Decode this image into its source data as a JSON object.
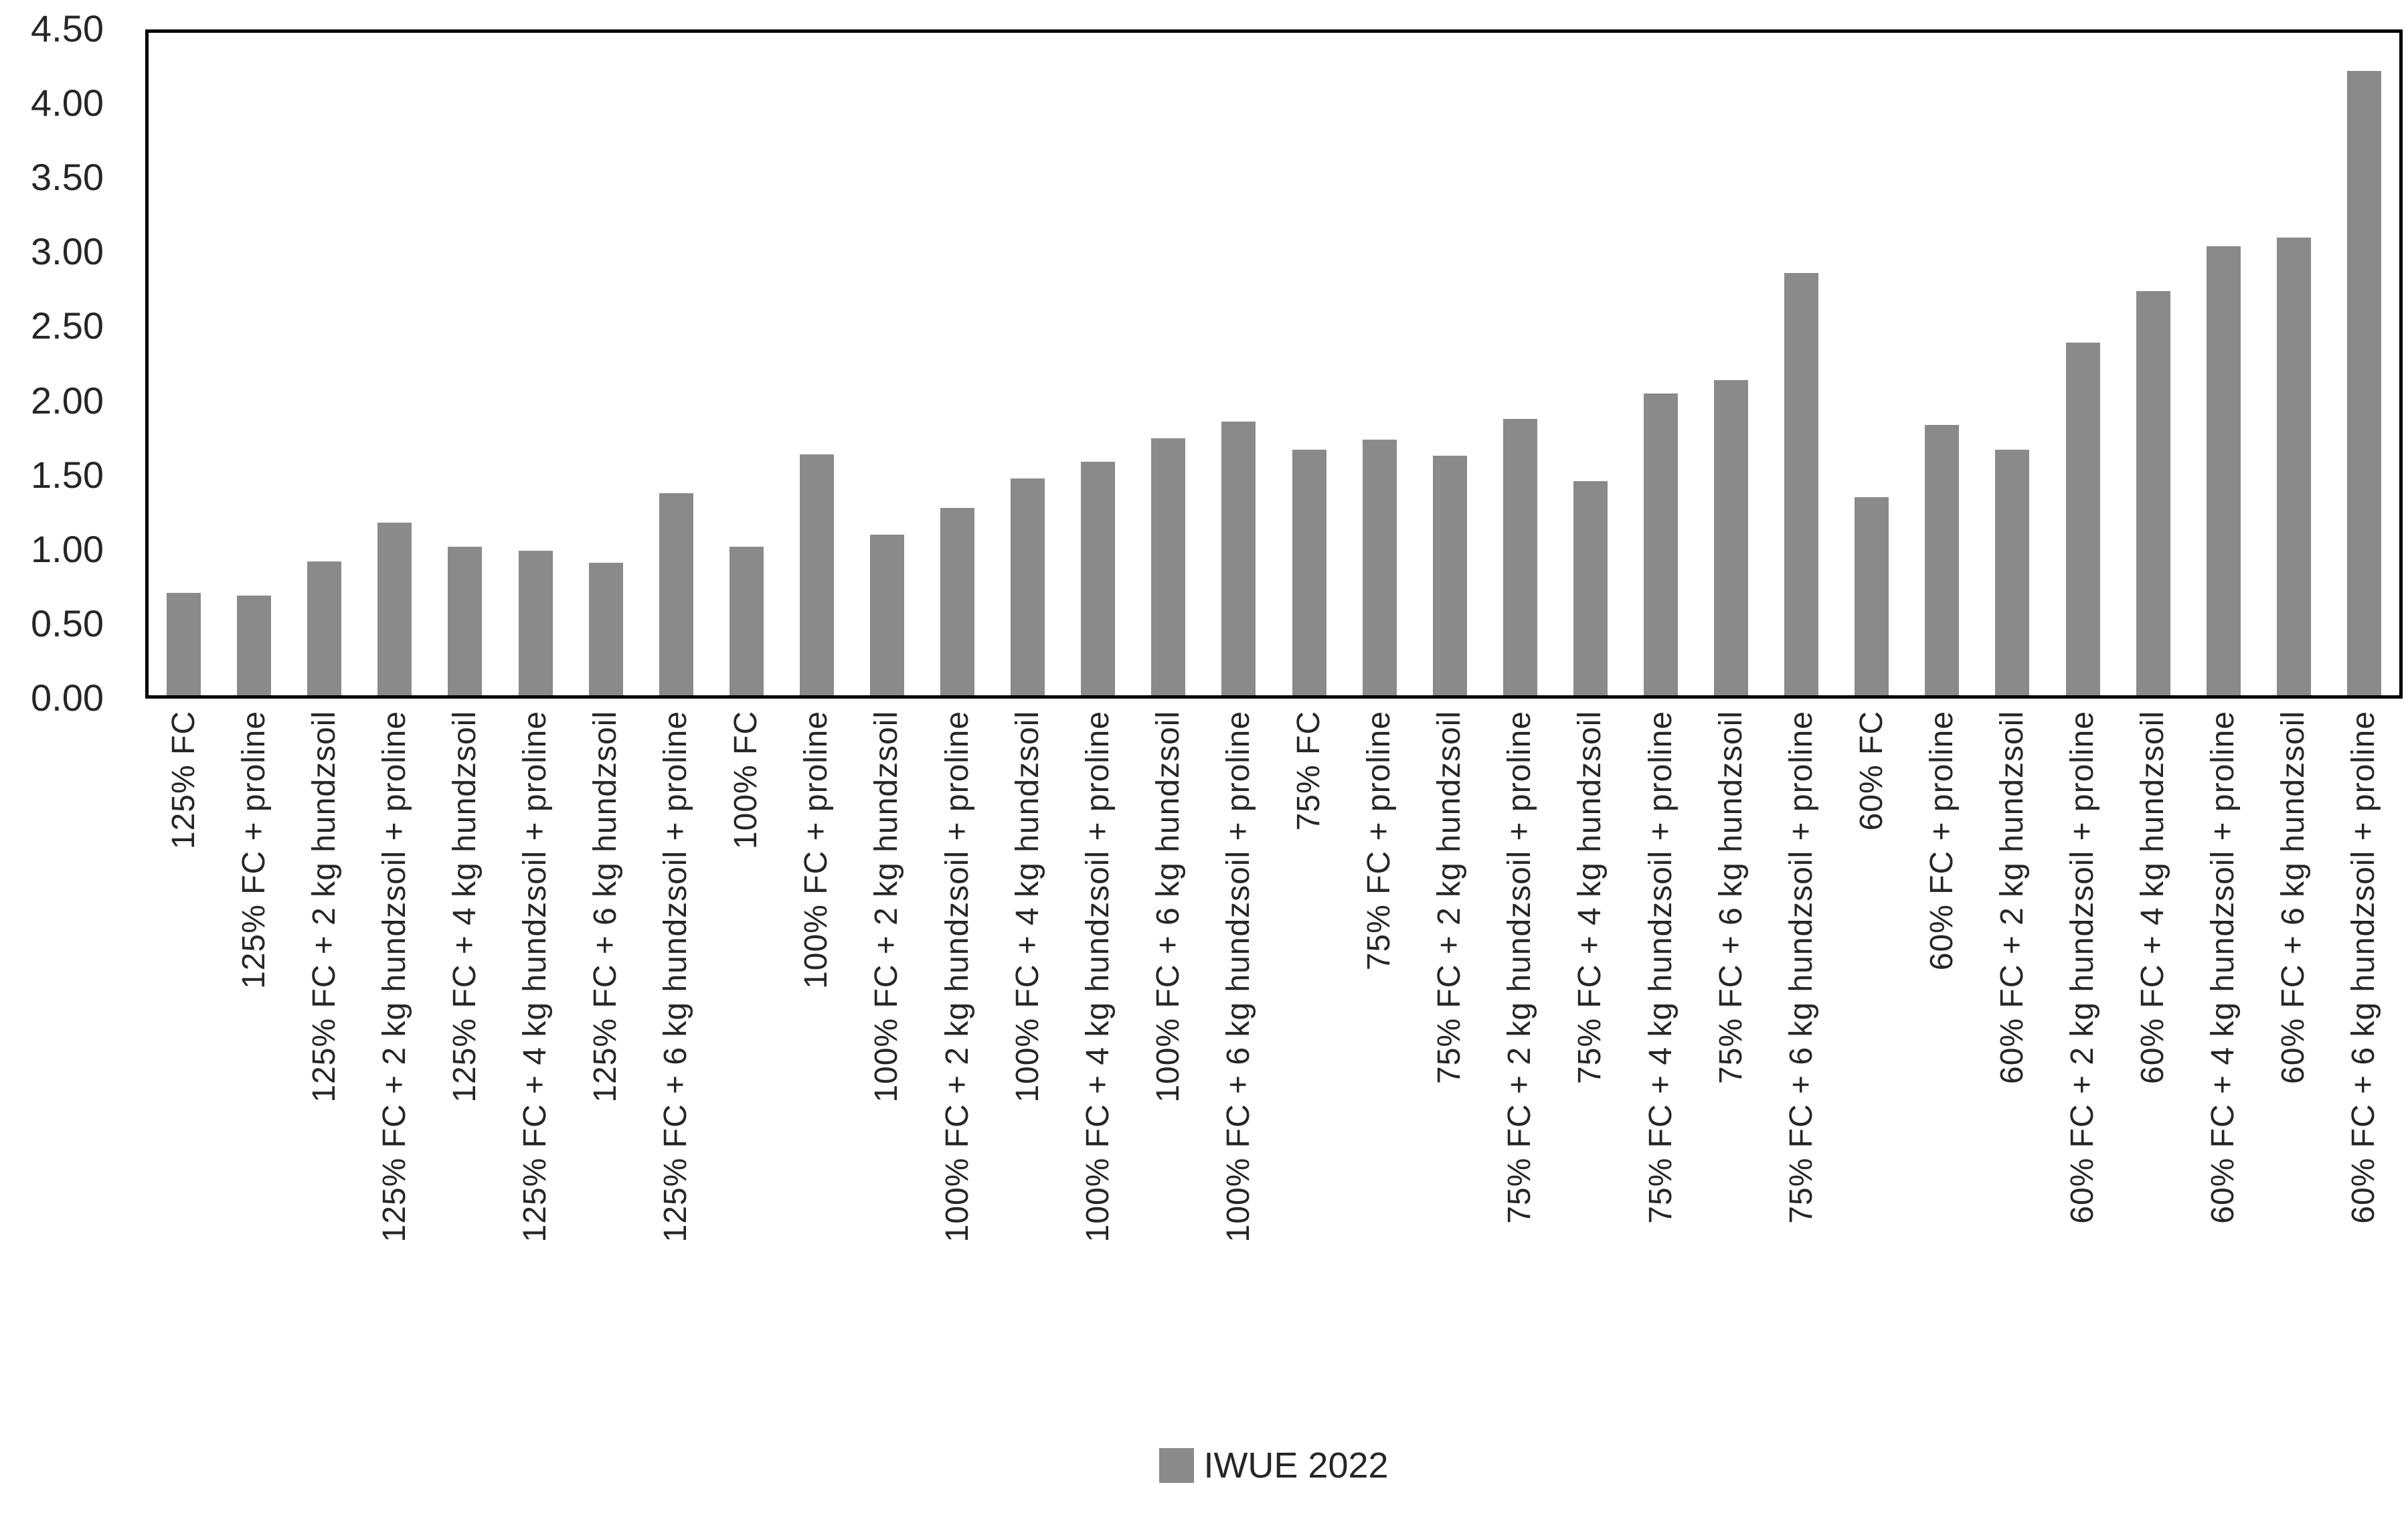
{
  "chart_data": {
    "type": "bar",
    "title": "",
    "xlabel": "",
    "ylabel": "",
    "categories": [
      "125% FC",
      "125% FC + proline",
      "125% FC + 2 kg hundzsoil",
      "125% FC + 2 kg hundzsoil + proline",
      "125% FC + 4 kg hundzsoil",
      "125% FC + 4 kg hundzsoil + proline",
      "125% FC + 6 kg hundzsoil",
      "125% FC + 6 kg hundzsoil + proline",
      "100% FC",
      "100% FC + proline",
      "100% FC + 2 kg hundzsoil",
      "100% FC + 2 kg hundzsoil + proline",
      "100% FC + 4 kg hundzsoil",
      "100% FC + 4 kg hundzsoil + proline",
      "100% FC + 6 kg hundzsoil",
      "100% FC + 6 kg hundzsoil + proline",
      "75% FC",
      "75% FC + proline",
      "75% FC + 2 kg hundzsoil",
      "75% FC + 2 kg hundzsoil + proline",
      "75% FC + 4 kg hundzsoil",
      "75% FC + 4 kg hundzsoil + proline",
      "75% FC + 6 kg hundzsoil",
      "75% FC + 6 kg hundzsoil + proline",
      "60% FC",
      "60% FC + proline",
      "60% FC + 2 kg hundzsoil",
      "60% FC + 2 kg hundzsoil + proline",
      "60% FC + 4 kg hundzsoil",
      "60% FC + 4 kg hundzsoil + proline",
      "60% FC + 6 kg hundzsoil",
      "60% FC + 6 kg hundzsoil + proline"
    ],
    "series": [
      {
        "name": "IWUE 2022",
        "values": [
          0.69,
          0.67,
          0.9,
          1.16,
          1.0,
          0.97,
          0.89,
          1.36,
          1.0,
          1.62,
          1.08,
          1.26,
          1.46,
          1.57,
          1.73,
          1.84,
          1.65,
          1.72,
          1.61,
          1.86,
          1.44,
          2.03,
          2.12,
          2.84,
          1.33,
          1.82,
          1.65,
          2.37,
          2.72,
          3.02,
          3.08,
          4.2
        ]
      }
    ],
    "ylim": [
      0,
      4.5
    ],
    "ytick_step": 0.5,
    "ytick_labels": [
      "0.00",
      "0.50",
      "1.00",
      "1.50",
      "2.00",
      "2.50",
      "3.00",
      "3.50",
      "4.00",
      "4.50"
    ],
    "grid": false,
    "legend_position": "bottom",
    "legend_entries": [
      "IWUE 2022"
    ]
  },
  "colors": {
    "bar": "#8a8a8a",
    "legend_swatch": "#8a8a8a",
    "axis_line": "#000000",
    "label_text": "#262626",
    "background": "#ffffff"
  }
}
